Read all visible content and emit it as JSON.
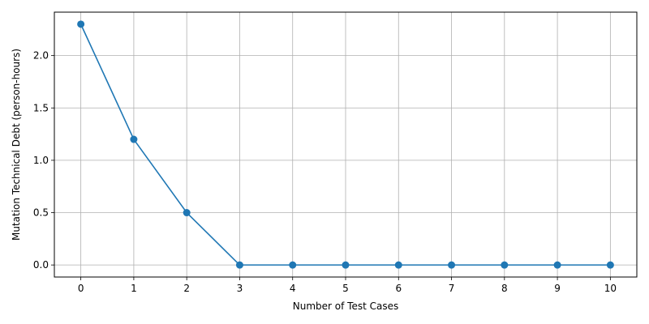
{
  "chart_data": {
    "type": "line",
    "title": "",
    "xlabel": "Number of Test Cases",
    "ylabel": "Mutation Technical Debt (person-hours)",
    "x": [
      0,
      1,
      2,
      3,
      4,
      5,
      6,
      7,
      8,
      9,
      10
    ],
    "series": [
      {
        "values": [
          2.3,
          1.2,
          0.5,
          0.0,
          0.0,
          0.0,
          0.0,
          0.0,
          0.0,
          0.0,
          0.0
        ],
        "color": "#1f77b4",
        "marker": "circle"
      }
    ],
    "xlim": [
      -0.5,
      10.5
    ],
    "ylim": [
      -0.115,
      2.415
    ],
    "xticks": [
      0,
      1,
      2,
      3,
      4,
      5,
      6,
      7,
      8,
      9,
      10
    ],
    "xtick_labels": [
      "0",
      "1",
      "2",
      "3",
      "4",
      "5",
      "6",
      "7",
      "8",
      "9",
      "10"
    ],
    "yticks": [
      0.0,
      0.5,
      1.0,
      1.5,
      2.0
    ],
    "ytick_labels": [
      "0.0",
      "0.5",
      "1.0",
      "1.5",
      "2.0"
    ],
    "grid": true,
    "grid_color": "#b0b0b0",
    "legend": false
  }
}
